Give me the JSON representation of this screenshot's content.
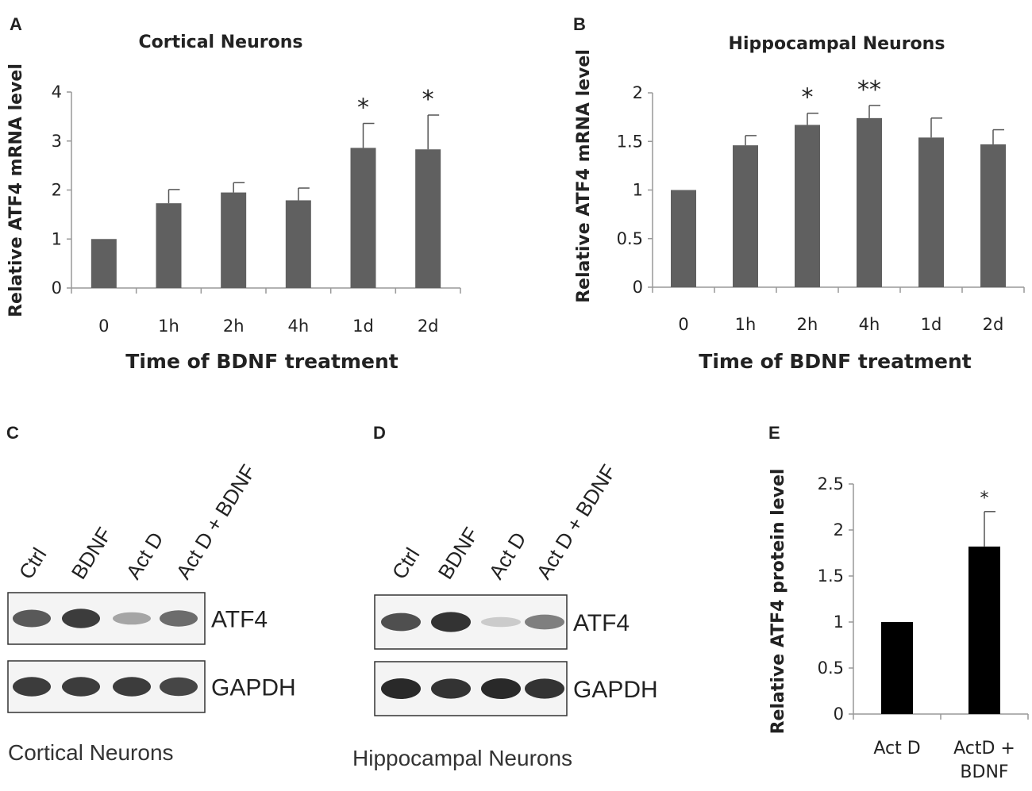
{
  "panels": {
    "A": "A",
    "B": "B",
    "C": "C",
    "D": "D",
    "E": "E"
  },
  "chart_data": [
    {
      "type": "bar",
      "panel": "A",
      "title": "Cortical Neurons",
      "xlabel": "Time of BDNF treatment",
      "ylabel": "Relative ATF4 mRNA level",
      "categories": [
        "0",
        "1h",
        "2h",
        "4h",
        "1d",
        "2d"
      ],
      "values": [
        1.0,
        1.73,
        1.95,
        1.79,
        2.86,
        2.83
      ],
      "errors": [
        0.0,
        0.28,
        0.2,
        0.25,
        0.5,
        0.7
      ],
      "significance": [
        "",
        "",
        "",
        "",
        "*",
        "*"
      ],
      "ylim": [
        0,
        4
      ],
      "yticks": [
        "0",
        "1",
        "2",
        "3",
        "4"
      ],
      "bar_color": "#606060"
    },
    {
      "type": "bar",
      "panel": "B",
      "title": "Hippocampal Neurons",
      "xlabel": "Time of BDNF treatment",
      "ylabel": "Relative ATF4 mRNA level",
      "categories": [
        "0",
        "1h",
        "2h",
        "4h",
        "1d",
        "2d"
      ],
      "values": [
        1.0,
        1.46,
        1.67,
        1.74,
        1.54,
        1.47
      ],
      "errors": [
        0.0,
        0.1,
        0.12,
        0.13,
        0.2,
        0.15
      ],
      "significance": [
        "",
        "",
        "*",
        "**",
        "",
        ""
      ],
      "ylim": [
        0,
        2
      ],
      "yticks": [
        "0",
        "0.5",
        "1",
        "1.5",
        "2"
      ],
      "bar_color": "#606060"
    },
    {
      "type": "bar",
      "panel": "E",
      "title": "",
      "xlabel": "",
      "ylabel": "Relative ATF4 protein level",
      "categories": [
        "Act D",
        "ActD + BDNF"
      ],
      "category_lines": [
        [
          "Act D"
        ],
        [
          "ActD +",
          "BDNF"
        ]
      ],
      "values": [
        1.0,
        1.82
      ],
      "errors": [
        0.0,
        0.38
      ],
      "significance": [
        "",
        "*"
      ],
      "ylim": [
        0,
        2.5
      ],
      "yticks": [
        "0",
        "0.5",
        "1",
        "1.5",
        "2",
        "2.5"
      ],
      "bar_color": "#000000"
    }
  ],
  "blots": [
    {
      "panel": "C",
      "lanes": [
        "Ctrl",
        "BDNF",
        "Act D",
        "Act D + BDNF"
      ],
      "bands": [
        "ATF4",
        "GAPDH"
      ],
      "caption": "Cortical Neurons",
      "atf4_intensity": [
        0.75,
        0.9,
        0.35,
        0.65
      ],
      "gapdh_intensity": [
        0.9,
        0.9,
        0.9,
        0.85
      ]
    },
    {
      "panel": "D",
      "lanes": [
        "Ctrl",
        "BDNF",
        "Act D",
        "Act D + BDNF"
      ],
      "bands": [
        "ATF4",
        "GAPDH"
      ],
      "caption": "Hippocampal Neurons",
      "atf4_intensity": [
        0.8,
        0.95,
        0.15,
        0.55
      ],
      "gapdh_intensity": [
        1.0,
        0.95,
        1.0,
        0.95
      ]
    }
  ]
}
